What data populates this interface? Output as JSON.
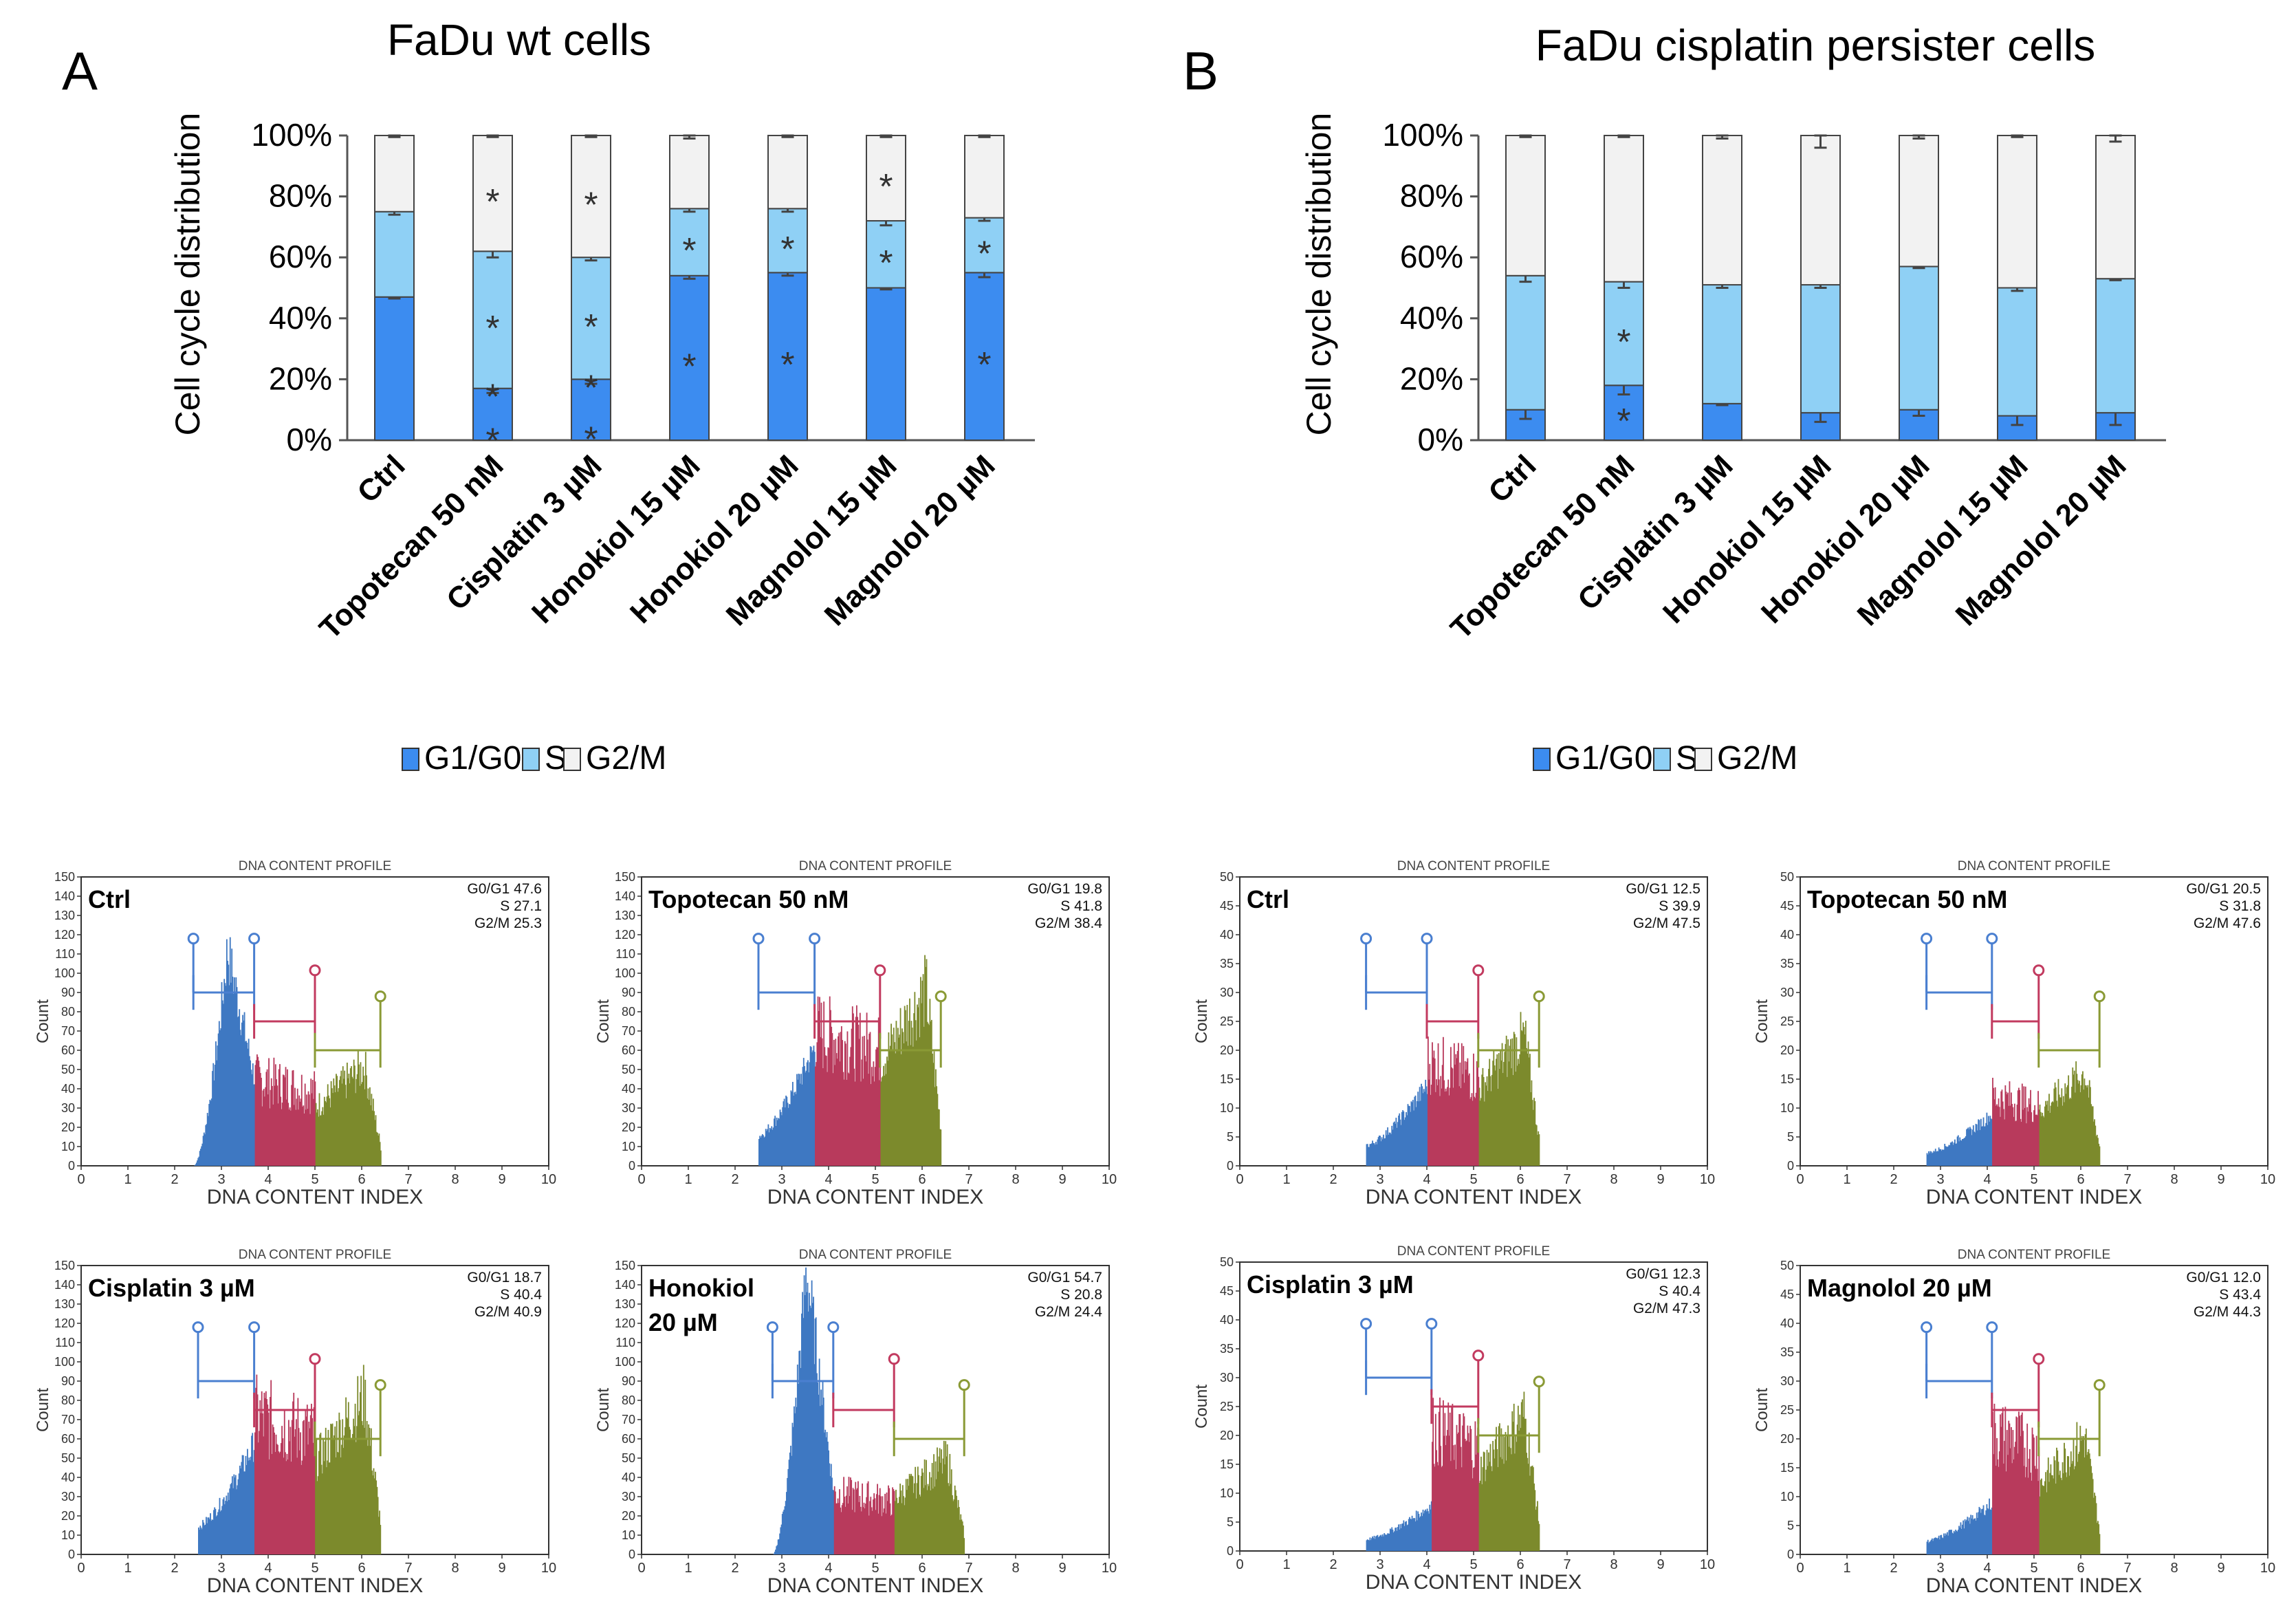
{
  "chart_data": [
    {
      "panel": "A",
      "type": "bar",
      "stacked": true,
      "title": "FaDu wt cells",
      "ylabel": "Cell cycle distribution",
      "ylim": [
        0,
        100
      ],
      "yticks": [
        "0%",
        "20%",
        "40%",
        "60%",
        "80%",
        "100%"
      ],
      "categories": [
        "Ctrl",
        "Topotecan 50 nM",
        "Cisplatin 3 µM",
        "Honokiol 15 µM",
        "Honokiol 20 µM",
        "Magnolol 15 µM",
        "Magnolol 20 µM"
      ],
      "series": [
        {
          "name": "G1/G0",
          "color": "#3c8cf0",
          "values": [
            47,
            17,
            20,
            54,
            55,
            50,
            55
          ],
          "errors": [
            0.5,
            1.5,
            1.5,
            1,
            1,
            0.5,
            1.5
          ]
        },
        {
          "name": "S",
          "color": "#8fd0f5",
          "values": [
            28,
            45,
            40,
            22,
            21,
            22,
            18
          ],
          "errors": [
            1,
            2,
            1,
            1,
            1,
            1.5,
            1
          ]
        },
        {
          "name": "G2/M",
          "color": "#f2f2f2",
          "values": [
            25,
            38,
            40,
            24,
            24,
            28,
            27
          ],
          "errors": [
            0.5,
            0.5,
            0.5,
            1,
            0.5,
            0.5,
            0.5
          ]
        }
      ],
      "asterisks": [
        [],
        [
          "G1/G0 (2)",
          "S",
          "G2/M"
        ],
        [
          "G1/G0 (2)",
          "S",
          "G2/M"
        ],
        [
          "G1/G0",
          "S"
        ],
        [
          "G1/G0",
          "S"
        ],
        [
          "S",
          "G2/M"
        ],
        [
          "G1/G0",
          "S"
        ]
      ],
      "asterisk_glyph": "*",
      "legend": [
        "G1/G0",
        "S",
        "G2/M"
      ]
    },
    {
      "panel": "B",
      "type": "bar",
      "stacked": true,
      "title": "FaDu cisplatin persister cells",
      "ylabel": "Cell cycle distribution",
      "ylim": [
        0,
        100
      ],
      "yticks": [
        "0%",
        "20%",
        "40%",
        "60%",
        "80%",
        "100%"
      ],
      "categories": [
        "Ctrl",
        "Topotecan 50 nM",
        "Cisplatin 3 µM",
        "Honokiol 15 µM",
        "Honokiol 20 µM",
        "Magnolol 15 µM",
        "Magnolol 20 µM"
      ],
      "series": [
        {
          "name": "G1/G0",
          "color": "#3c8cf0",
          "values": [
            10,
            18,
            12,
            9,
            10,
            8,
            9
          ],
          "errors": [
            3,
            3,
            0.5,
            3,
            2,
            3,
            4
          ]
        },
        {
          "name": "S",
          "color": "#8fd0f5",
          "values": [
            44,
            34,
            39,
            42,
            47,
            42,
            44
          ],
          "errors": [
            2,
            2,
            1,
            1,
            0.5,
            1,
            0.5
          ]
        },
        {
          "name": "G2/M",
          "color": "#f2f2f2",
          "values": [
            46,
            48,
            49,
            49,
            43,
            50,
            47
          ],
          "errors": [
            0.5,
            0.5,
            1,
            4,
            1,
            0.5,
            2
          ]
        }
      ],
      "asterisks": [
        [],
        [
          "G1/G0",
          "S"
        ],
        [],
        [],
        [],
        [],
        []
      ],
      "asterisk_glyph": "*",
      "legend": [
        "G1/G0",
        "S",
        "G2/M"
      ]
    }
  ],
  "panels": {
    "A": {
      "letter": "A"
    },
    "B": {
      "letter": "B"
    }
  },
  "histograms": [
    {
      "id": "a1",
      "title": "DNA CONTENT PROFILE",
      "xlabel": "DNA CONTENT INDEX",
      "ylabel": "Count",
      "ymax": 150,
      "ystep": 10,
      "xticks": [
        "0",
        "1",
        "2",
        "3",
        "4",
        "5",
        "6",
        "7",
        "8",
        "9",
        "10"
      ],
      "label_lines": [
        "Ctrl"
      ],
      "stats": [
        "G0/G1 47.6",
        "S 27.1",
        "G2/M 25.3"
      ],
      "bounds": [
        2.4,
        3.7,
        5.0,
        6.4
      ],
      "peak_g1": 112,
      "s_level": 45,
      "g2_level": 48,
      "shoulder": 0.5
    },
    {
      "id": "a2",
      "title": "DNA CONTENT PROFILE",
      "xlabel": "DNA CONTENT INDEX",
      "ylabel": "Count",
      "ymax": 150,
      "ystep": 10,
      "xticks": [
        "0",
        "1",
        "2",
        "3",
        "4",
        "5",
        "6",
        "7",
        "8",
        "9",
        "10"
      ],
      "label_lines": [
        "Topotecan 50 nM"
      ],
      "stats": [
        "G0/G1 19.8",
        "S 41.8",
        "G2/M 38.4"
      ],
      "bounds": [
        2.5,
        3.7,
        5.1,
        6.4
      ],
      "peak_g1": 62,
      "s_level": 70,
      "g2_level": 85,
      "shoulder": 0.0
    },
    {
      "id": "a3",
      "title": "DNA CONTENT PROFILE",
      "xlabel": "DNA CONTENT INDEX",
      "ylabel": "Count",
      "ymax": 150,
      "ystep": 10,
      "xticks": [
        "0",
        "1",
        "2",
        "3",
        "4",
        "5",
        "6",
        "7",
        "8",
        "9",
        "10"
      ],
      "label_lines": [
        "Cisplatin 3 µM"
      ],
      "stats": [
        "G0/G1 18.7",
        "S 40.4",
        "G2/M 40.9"
      ],
      "bounds": [
        2.5,
        3.7,
        5.0,
        6.4
      ],
      "peak_g1": 58,
      "s_level": 72,
      "g2_level": 76,
      "shoulder": 0.0
    },
    {
      "id": "a4",
      "title": "DNA CONTENT PROFILE",
      "xlabel": "DNA CONTENT INDEX",
      "ylabel": "Count",
      "ymax": 150,
      "ystep": 10,
      "xticks": [
        "0",
        "1",
        "2",
        "3",
        "4",
        "5",
        "6",
        "7",
        "8",
        "9",
        "10"
      ],
      "label_lines": [
        "Honokiol",
        "20 µM"
      ],
      "stats": [
        "G0/G1 54.7",
        "S 20.8",
        "G2/M 24.4"
      ],
      "bounds": [
        2.8,
        4.1,
        5.4,
        6.9
      ],
      "peak_g1": 148,
      "s_level": 32,
      "g2_level": 46,
      "shoulder": 0.3
    },
    {
      "id": "b1",
      "title": "DNA CONTENT PROFILE",
      "xlabel": "DNA CONTENT INDEX",
      "ylabel": "Count",
      "ymax": 50,
      "ystep": 5,
      "xticks": [
        "0",
        "1",
        "2",
        "3",
        "4",
        "5",
        "6",
        "7",
        "8",
        "9",
        "10"
      ],
      "label_lines": [
        "Ctrl"
      ],
      "stats": [
        "G0/G1 12.5",
        "S 39.9",
        "G2/M 47.5"
      ],
      "bounds": [
        2.7,
        4.0,
        5.1,
        6.4
      ],
      "peak_g1": 14,
      "s_level": 18,
      "g2_level": 21,
      "shoulder": 0.0
    },
    {
      "id": "b2",
      "title": "DNA CONTENT PROFILE",
      "xlabel": "DNA CONTENT INDEX",
      "ylabel": "Count",
      "ymax": 50,
      "ystep": 5,
      "xticks": [
        "0",
        "1",
        "2",
        "3",
        "4",
        "5",
        "6",
        "7",
        "8",
        "9",
        "10"
      ],
      "label_lines": [
        "Topotecan 50 nM"
      ],
      "stats": [
        "G0/G1 20.5",
        "S 31.8",
        "G2/M 47.6"
      ],
      "bounds": [
        2.7,
        4.1,
        5.1,
        6.4
      ],
      "peak_g1": 9,
      "s_level": 12,
      "g2_level": 15,
      "shoulder": 0.0
    },
    {
      "id": "b3",
      "title": "DNA CONTENT PROFILE",
      "xlabel": "DNA CONTENT INDEX",
      "ylabel": "Count",
      "ymax": 50,
      "ystep": 5,
      "xticks": [
        "0",
        "1",
        "2",
        "3",
        "4",
        "5",
        "6",
        "7",
        "8",
        "9",
        "10"
      ],
      "label_lines": [
        "Cisplatin 3 µM"
      ],
      "stats": [
        "G0/G1 12.3",
        "S 40.4",
        "G2/M 47.3"
      ],
      "bounds": [
        2.7,
        4.1,
        5.1,
        6.4
      ],
      "peak_g1": 8,
      "s_level": 21,
      "g2_level": 22,
      "shoulder": 0.0
    },
    {
      "id": "b4",
      "title": "DNA CONTENT PROFILE",
      "xlabel": "DNA CONTENT INDEX",
      "ylabel": "Count",
      "ymax": 50,
      "ystep": 5,
      "xticks": [
        "0",
        "1",
        "2",
        "3",
        "4",
        "5",
        "6",
        "7",
        "8",
        "9",
        "10"
      ],
      "label_lines": [
        "Magnolol 20 µM"
      ],
      "stats": [
        "G0/G1 12.0",
        "S 43.4",
        "G2/M 44.3"
      ],
      "bounds": [
        2.7,
        4.1,
        5.1,
        6.4
      ],
      "peak_g1": 9,
      "s_level": 21,
      "g2_level": 19,
      "shoulder": 0.0
    }
  ],
  "colors": {
    "g1": "#3e78c2",
    "s": "#b83a5c",
    "g2": "#7c8a2c",
    "gate_g1": "#4a7fd0",
    "gate_s": "#c23a5f",
    "gate_g2": "#8a9a35"
  }
}
